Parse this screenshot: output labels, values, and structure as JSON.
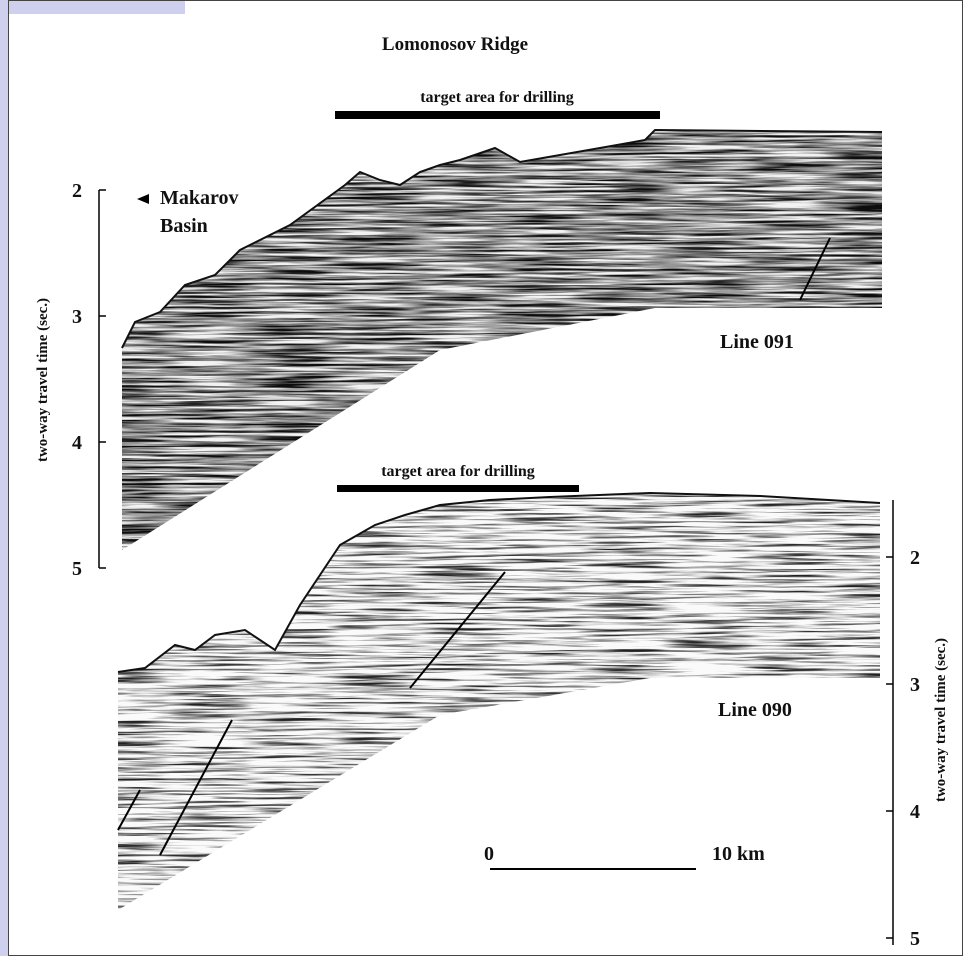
{
  "title": "Lomonosov Ridge",
  "annotation": {
    "lines": [
      "Makarov",
      "Basin"
    ]
  },
  "sections": [
    {
      "label": "Line 091",
      "target": "target area for drilling",
      "axis": {
        "label": "two-way travel time (sec.)",
        "ticks": [
          2,
          3,
          4,
          5
        ]
      }
    },
    {
      "label": "Line 090",
      "target": "target area for drilling",
      "axis": {
        "label": "two-way travel time (sec.)",
        "ticks": [
          2,
          3,
          4,
          5
        ]
      }
    }
  ],
  "scale": {
    "start": "0",
    "end": "10 km"
  }
}
